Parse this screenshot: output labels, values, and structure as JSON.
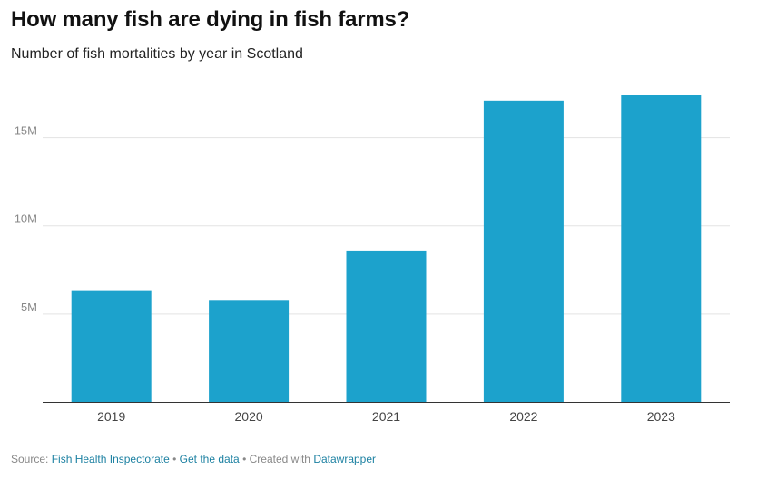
{
  "header": {
    "title": "How many fish are dying in fish farms?",
    "subtitle": "Number of fish mortalities by year in Scotland"
  },
  "chart_data": {
    "type": "bar",
    "title": "How many fish are dying in fish farms?",
    "subtitle": "Number of fish mortalities by year in Scotland",
    "categories": [
      "2019",
      "2020",
      "2021",
      "2022",
      "2023"
    ],
    "values": [
      6300000,
      5750000,
      8550000,
      17100000,
      17400000
    ],
    "ylim": [
      0,
      17400000
    ],
    "yticks": [
      {
        "value": 5000000,
        "label": "5M"
      },
      {
        "value": 10000000,
        "label": "10M"
      },
      {
        "value": 15000000,
        "label": "15M"
      }
    ],
    "xlabel": "",
    "ylabel": "",
    "grid": true,
    "bar_color": "#1ca2cc"
  },
  "footer": {
    "source_prefix": "Source:",
    "source_link": "Fish Health Inspectorate",
    "separator": "•",
    "data_link": "Get the data",
    "created_text": "Created with",
    "tool_link": "Datawrapper"
  }
}
